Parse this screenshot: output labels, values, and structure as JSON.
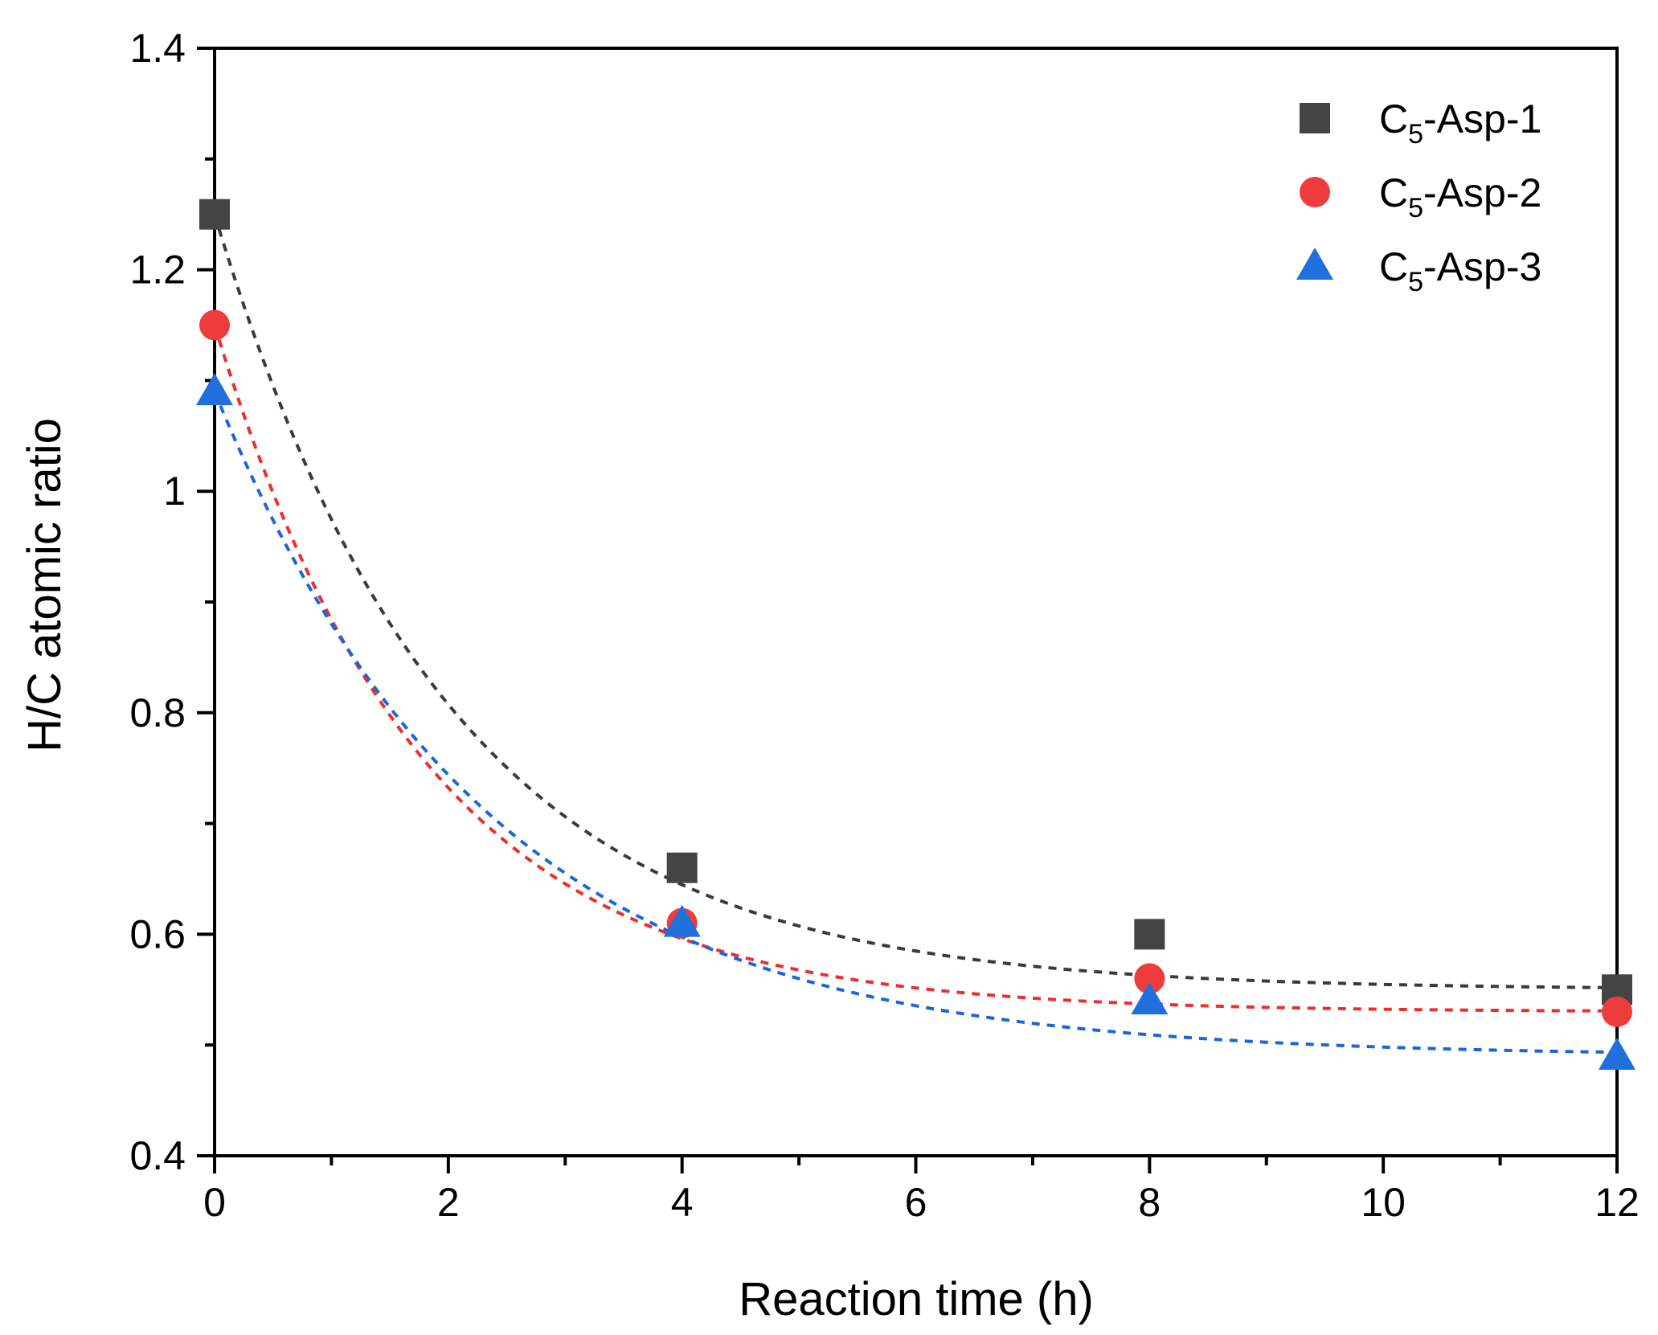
{
  "chart_data": {
    "type": "scatter",
    "title": "",
    "xlabel": "Reaction time (h)",
    "ylabel": "H/C atomic ratio",
    "xlim": [
      0,
      12
    ],
    "ylim": [
      0.4,
      1.4
    ],
    "xticks": [
      0,
      2,
      4,
      6,
      8,
      10,
      12
    ],
    "xtick_labels": [
      "0",
      "2",
      "4",
      "6",
      "8",
      "10",
      "12"
    ],
    "yticks": [
      0.4,
      0.6,
      0.8,
      1.0,
      1.2,
      1.4
    ],
    "ytick_labels": [
      "0.4",
      "0.6",
      "0.8",
      "1",
      "1.2",
      "1.4"
    ],
    "grid": false,
    "legend_position": "top-right",
    "series": [
      {
        "name": "C5-Asp-1",
        "label_main": "C",
        "label_sub": "5",
        "label_rest": "-Asp-1",
        "marker": "square",
        "color": "#444444",
        "fit_color": "#3a3a3a",
        "x": [
          0,
          4,
          8,
          12
        ],
        "y": [
          1.25,
          0.66,
          0.6,
          0.55
        ],
        "fit": {
          "type": "exponential",
          "y0": 1.25,
          "plateau": 0.55,
          "k": 0.5
        }
      },
      {
        "name": "C5-Asp-2",
        "label_main": "C",
        "label_sub": "5",
        "label_rest": "-Asp-2",
        "marker": "circle",
        "color": "#ee3b3b",
        "fit_color": "#ee2d2d",
        "x": [
          0,
          4,
          8,
          12
        ],
        "y": [
          1.15,
          0.61,
          0.56,
          0.53
        ],
        "fit": {
          "type": "exponential",
          "y0": 1.15,
          "plateau": 0.53,
          "k": 0.56
        }
      },
      {
        "name": "C5-Asp-3",
        "label_main": "C",
        "label_sub": "5",
        "label_rest": "-Asp-3",
        "marker": "triangle",
        "color": "#1f6fdc",
        "fit_color": "#1a66d9",
        "x": [
          0,
          4,
          8,
          12
        ],
        "y": [
          1.09,
          0.61,
          0.54,
          0.49
        ],
        "fit": {
          "type": "exponential",
          "y0": 1.09,
          "plateau": 0.49,
          "k": 0.43
        }
      }
    ]
  }
}
